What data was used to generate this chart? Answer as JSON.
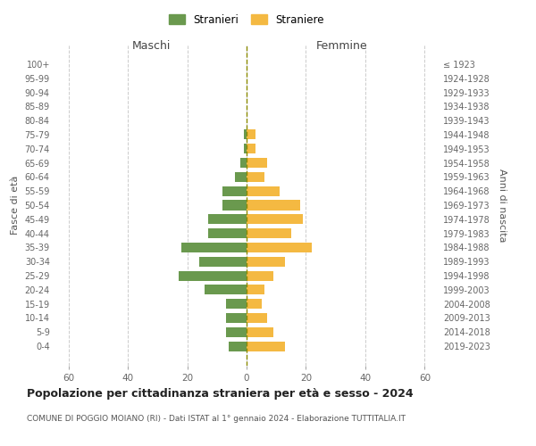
{
  "age_groups": [
    "0-4",
    "5-9",
    "10-14",
    "15-19",
    "20-24",
    "25-29",
    "30-34",
    "35-39",
    "40-44",
    "45-49",
    "50-54",
    "55-59",
    "60-64",
    "65-69",
    "70-74",
    "75-79",
    "80-84",
    "85-89",
    "90-94",
    "95-99",
    "100+"
  ],
  "birth_years": [
    "2019-2023",
    "2014-2018",
    "2009-2013",
    "2004-2008",
    "1999-2003",
    "1994-1998",
    "1989-1993",
    "1984-1988",
    "1979-1983",
    "1974-1978",
    "1969-1973",
    "1964-1968",
    "1959-1963",
    "1954-1958",
    "1949-1953",
    "1944-1948",
    "1939-1943",
    "1934-1938",
    "1929-1933",
    "1924-1928",
    "≤ 1923"
  ],
  "males": [
    6,
    7,
    7,
    7,
    14,
    23,
    16,
    22,
    13,
    13,
    8,
    8,
    4,
    2,
    1,
    1,
    0,
    0,
    0,
    0,
    0
  ],
  "females": [
    13,
    9,
    7,
    5,
    6,
    9,
    13,
    22,
    15,
    19,
    18,
    11,
    6,
    7,
    3,
    3,
    0,
    0,
    0,
    0,
    0
  ],
  "male_color": "#6a994e",
  "female_color": "#f4b942",
  "background_color": "#ffffff",
  "grid_color": "#cccccc",
  "title": "Popolazione per cittadinanza straniera per età e sesso - 2024",
  "subtitle": "COMUNE DI POGGIO MOIANO (RI) - Dati ISTAT al 1° gennaio 2024 - Elaborazione TUTTITALIA.IT",
  "left_header": "Maschi",
  "right_header": "Femmine",
  "left_ylabel": "Fasce di età",
  "right_ylabel": "Anni di nascita",
  "xlim": 65,
  "legend_stranieri": "Stranieri",
  "legend_straniere": "Straniere",
  "dashed_line_color": "#8b8b00"
}
